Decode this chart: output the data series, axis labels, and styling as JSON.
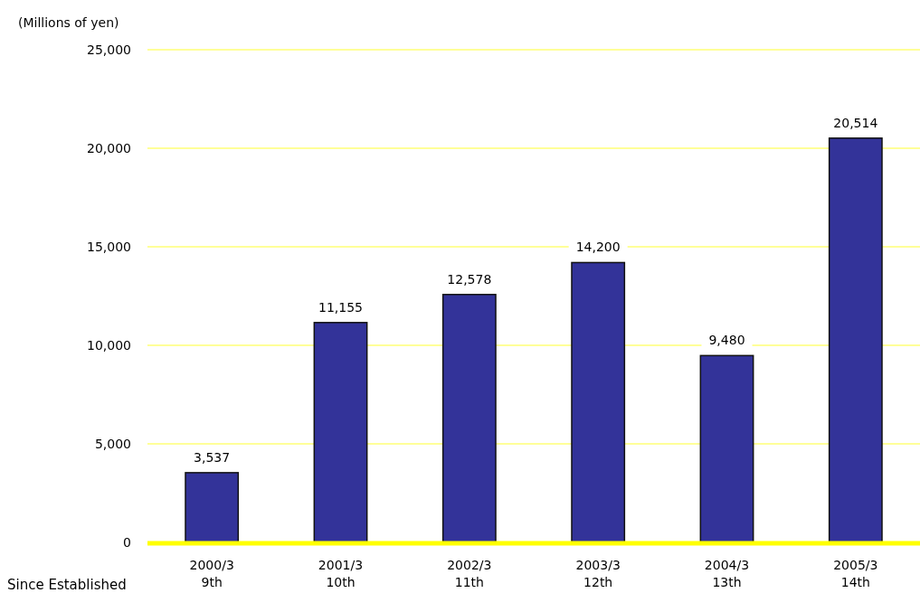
{
  "chart_data": {
    "type": "bar",
    "ylabel": "(Millions of yen)",
    "categories": [
      "2000/3\n9th",
      "2001/3\n10th",
      "2002/3\n11th",
      "2003/3\n12th",
      "2004/3\n13th",
      "2005/3\n14th"
    ],
    "values": [
      3537,
      11155,
      12578,
      14200,
      9480,
      20514
    ],
    "color": "#333399",
    "ylim": [
      0,
      25000
    ],
    "yticks": [
      {
        "value": 0,
        "label": "0"
      },
      {
        "value": 5000,
        "label": "5,000"
      },
      {
        "value": 10000,
        "label": "10,000"
      },
      {
        "value": 15000,
        "label": "15,000"
      },
      {
        "value": 20000,
        "label": "20,000"
      },
      {
        "value": 25000,
        "label": "25,000"
      }
    ],
    "grid": "y",
    "value_labels": [
      "3,537",
      "11,155",
      "12,578",
      "14,200",
      "9,480",
      "20,514"
    ],
    "annotations": [
      "Since Established"
    ]
  }
}
